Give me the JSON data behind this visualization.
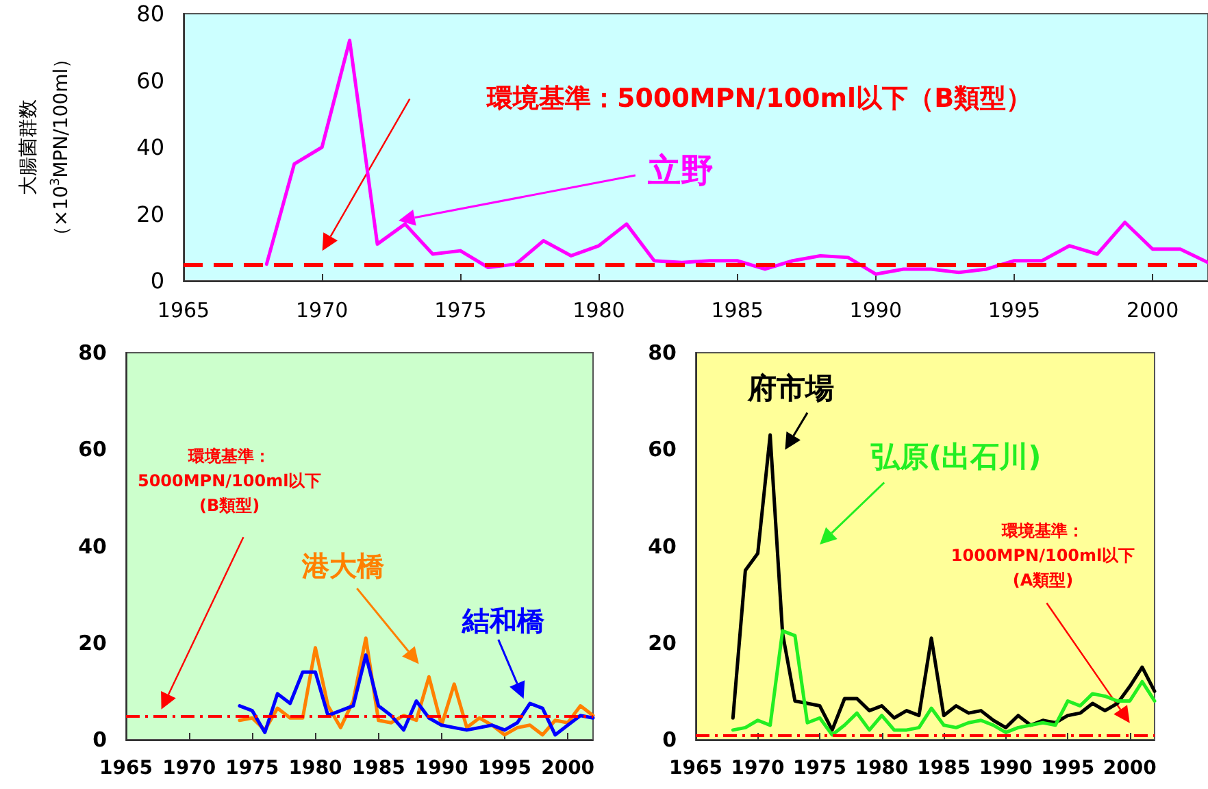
{
  "chart_data": [
    {
      "type": "line",
      "ylabel": "大腸菌群数",
      "annotations": [
        "（×10$^{3}$MPN/100ml）"
      ],
      "x": [
        1968,
        1969,
        1970,
        1971,
        1972,
        1973,
        1974,
        1975,
        1976,
        1977,
        1978,
        1979,
        1980,
        1981,
        1982,
        1983,
        1984,
        1985,
        1986,
        1987,
        1988,
        1989,
        1990,
        1991,
        1992,
        1993,
        1994,
        1995,
        1996,
        1997,
        1998,
        1999,
        2000,
        2001,
        2002
      ],
      "series": [
        {
          "name": "立野",
          "color": "#ff00ff",
          "values": [
            5,
            35,
            40,
            72,
            11,
            17,
            8,
            9,
            4,
            5,
            12,
            7.5,
            10.5,
            17,
            6,
            5.5,
            6,
            6,
            3.5,
            6,
            7.5,
            7,
            2,
            3.5,
            3.5,
            2.5,
            3.5,
            6,
            6,
            10.5,
            8,
            17.5,
            9.5,
            9.5,
            5.5
          ]
        }
      ],
      "xlim": [
        1965,
        2002
      ],
      "xticks": [
        1965,
        1970,
        1975,
        1980,
        1985,
        1990,
        1995,
        2000
      ],
      "ylim": [
        0,
        80
      ],
      "yticks": [
        0,
        20,
        40,
        60,
        80
      ],
      "marker": "none",
      "ref_lines": [
        {
          "axis": "y",
          "value": 5,
          "label": "環境基準：5000MPN/100ml以下（B類型）",
          "color": "#ff0000",
          "line_style": "dashed"
        }
      ]
    },
    {
      "type": "line",
      "x": [
        1974,
        1975,
        1976,
        1977,
        1978,
        1979,
        1980,
        1981,
        1982,
        1983,
        1984,
        1985,
        1986,
        1987,
        1988,
        1989,
        1990,
        1991,
        1992,
        1993,
        1994,
        1995,
        1996,
        1997,
        1998,
        1999,
        2000,
        2001,
        2002
      ],
      "series": [
        {
          "name": "港大橋",
          "color": "#ff8000",
          "values": [
            4,
            4.5,
            2,
            6.5,
            4.5,
            4.5,
            19,
            7,
            2.5,
            8,
            21,
            4,
            3.5,
            5,
            4,
            13,
            3,
            11.5,
            2.5,
            4.5,
            3,
            1,
            2.5,
            3,
            1,
            4,
            3.5,
            7,
            5
          ]
        },
        {
          "name": "結和橋",
          "color": "#0000ff",
          "values": [
            7,
            6,
            1.5,
            9.5,
            7.5,
            14,
            14,
            5,
            6,
            7,
            17.5,
            7,
            5,
            2,
            8,
            4.5,
            3,
            2.5,
            2,
            2.5,
            3,
            2,
            3.5,
            7.5,
            6.5,
            1,
            3,
            5,
            4.5
          ]
        }
      ],
      "xlim": [
        1965,
        2002
      ],
      "xticks": [
        1965,
        1970,
        1975,
        1980,
        1985,
        1990,
        1995,
        2000
      ],
      "ylim": [
        0,
        80
      ],
      "yticks": [
        0,
        20,
        40,
        60,
        80
      ],
      "marker": "none",
      "ref_lines": [
        {
          "axis": "y",
          "value": 5,
          "label": "環境基準：\n5000MPN/100ml以下\n(B類型)",
          "color": "#ff0000",
          "line_style": "dashed"
        }
      ]
    },
    {
      "type": "line",
      "x": [
        1968,
        1969,
        1970,
        1971,
        1972,
        1973,
        1974,
        1975,
        1976,
        1977,
        1978,
        1979,
        1980,
        1981,
        1982,
        1983,
        1984,
        1985,
        1986,
        1987,
        1988,
        1989,
        1990,
        1991,
        1992,
        1993,
        1994,
        1995,
        1996,
        1997,
        1998,
        1999,
        2000,
        2001,
        2002
      ],
      "series": [
        {
          "name": "府市場",
          "color": "#000000",
          "values": [
            4.5,
            35,
            38.5,
            63,
            22,
            8,
            7.5,
            7,
            2,
            8.5,
            8.5,
            6,
            7,
            4.5,
            6,
            5,
            21,
            5,
            7,
            5.5,
            6,
            4,
            2.5,
            5,
            3,
            4,
            3.5,
            5,
            5.5,
            7.5,
            6,
            7.5,
            11,
            15,
            10
          ]
        },
        {
          "name": "弘原(出石川)",
          "color": "#22ee22",
          "values": [
            2,
            2.5,
            4,
            3,
            22.5,
            21.5,
            3.5,
            4.5,
            1,
            3,
            5.5,
            2,
            5,
            2,
            2,
            2.5,
            6.5,
            3,
            2.5,
            3.5,
            4,
            3,
            1.5,
            2.5,
            3,
            3.5,
            3,
            8,
            7,
            9.5,
            9,
            8,
            8,
            12,
            8
          ]
        }
      ],
      "xlim": [
        1965,
        2002
      ],
      "xticks": [
        1965,
        1970,
        1975,
        1980,
        1985,
        1990,
        1995,
        2000
      ],
      "ylim": [
        0,
        80
      ],
      "yticks": [
        0,
        20,
        40,
        60,
        80
      ],
      "marker": "none",
      "ref_lines": [
        {
          "axis": "y",
          "value": 1,
          "label": "環境基準：\n1000MPN/100ml以下\n(A類型)",
          "color": "#ff0000",
          "line_style": "dashed"
        }
      ]
    }
  ]
}
